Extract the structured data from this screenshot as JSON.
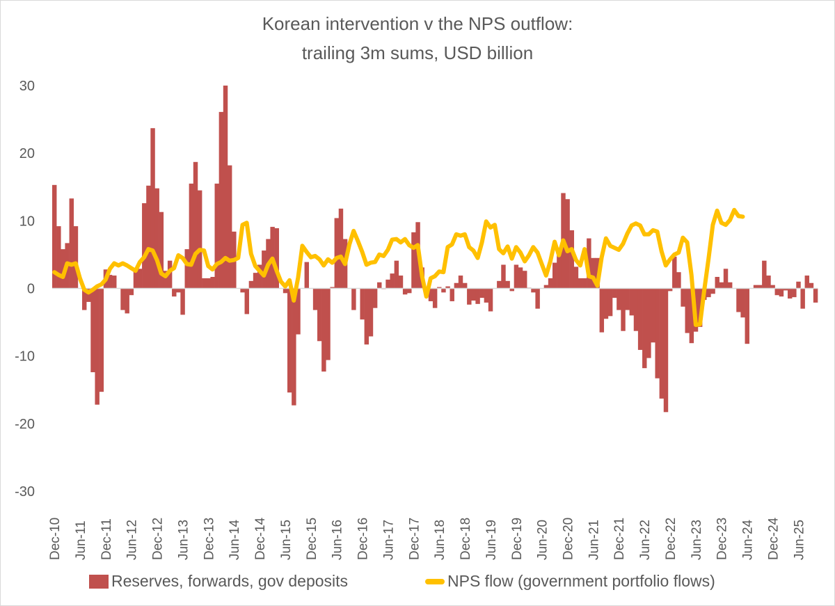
{
  "chart_data": {
    "type": "bar",
    "title": "Korean intervention v the NPS outflow:",
    "subtitle": "trailing 3m sums, USD billion",
    "xlabel": "",
    "ylabel": "",
    "ylim": [
      -30,
      30
    ],
    "yticks": [
      30,
      20,
      10,
      0,
      -10,
      -20,
      -30
    ],
    "grid": false,
    "legend_position": "bottom",
    "x_start": "Dec-10",
    "x_frequency": "monthly",
    "x_tick_labels": [
      "Dec-10",
      "Jun-11",
      "Dec-11",
      "Jun-12",
      "Dec-12",
      "Jun-13",
      "Dec-13",
      "Jun-14",
      "Dec-14",
      "Jun-15",
      "Dec-15",
      "Jun-16",
      "Dec-16",
      "Jun-17",
      "Dec-17",
      "Jun-18",
      "Dec-18",
      "Jun-19",
      "Dec-19",
      "Jun-20",
      "Dec-20",
      "Jun-21",
      "Dec-21",
      "Jun-22",
      "Dec-22",
      "Jun-23",
      "Dec-23",
      "Jun-24",
      "Dec-24",
      "Jun-25"
    ],
    "series": [
      {
        "name": "Reserves, forwards, gov deposits",
        "type": "bar",
        "color": "#c0504d",
        "values": [
          15.3,
          9.2,
          5.8,
          6.7,
          13.3,
          9.2,
          0,
          -3.2,
          -2.0,
          -12.4,
          -17.2,
          -15.3,
          2.8,
          2.0,
          1.9,
          0,
          -3.2,
          -3.7,
          -1.0,
          2.6,
          2.9,
          12.6,
          15.2,
          23.7,
          14.8,
          11.3,
          2.6,
          4.1,
          -1.2,
          -0.6,
          -3.9,
          5.8,
          15.5,
          18.7,
          14.5,
          1.5,
          1.5,
          1.7,
          15.5,
          26.1,
          30.0,
          18.2,
          8.4,
          0,
          -0.6,
          -3.8,
          1.1,
          2.3,
          3.5,
          5.6,
          7.3,
          9.1,
          8.9,
          0,
          -0.7,
          -15.4,
          -17.3,
          -6.8,
          0,
          3.9,
          0,
          -3.2,
          -7.8,
          -12.3,
          -10.6,
          0.2,
          10.4,
          11.8,
          7.3,
          0,
          -3.2,
          0,
          -4.6,
          -8.3,
          -7.1,
          -2.9,
          0.9,
          -0.1,
          1.3,
          2.2,
          4.1,
          1.9,
          -0.9,
          -0.7,
          8.3,
          9.8,
          3.1,
          0,
          -1.9,
          -2.9,
          0.2,
          -0.6,
          0.3,
          -1.9,
          0.8,
          1.9,
          0.8,
          -2.4,
          -1.8,
          -2.3,
          -1.4,
          -2.1,
          -3.4,
          0,
          1.1,
          3.5,
          1.1,
          -0.4,
          3.5,
          3.1,
          2.6,
          0.1,
          -0.6,
          -3.0,
          0,
          0.5,
          1.5,
          3.8,
          6.0,
          14.1,
          13.2,
          8.6,
          3.2,
          1.5,
          1.5,
          7.4,
          4.5,
          4.5,
          -6.5,
          -4.5,
          -4.1,
          -1.4,
          -3.2,
          -6.3,
          -3.2,
          -4.0,
          -6.3,
          -9.1,
          -11.8,
          -10.3,
          -8.0,
          -13.3,
          -16.3,
          -18.3,
          -0.4,
          4.7,
          2.4,
          -2.7,
          -6.6,
          -8.1,
          -6.4,
          -5.7,
          -1.7,
          -1.3,
          -0.8,
          1.7,
          0.9,
          2.9,
          0.9,
          0,
          -3.5,
          -4.3,
          -8.2,
          0,
          0.5,
          0.5,
          4.1,
          1.9,
          0.5,
          -1.0,
          -1.2,
          -0.3,
          -1.5,
          -1.3,
          1.0,
          -3.0,
          1.9,
          0.8,
          -2.1
        ]
      },
      {
        "name": "NPS flow (government portfolio flows)",
        "type": "line",
        "color": "#ffc000",
        "values": [
          2.4,
          2.0,
          1.7,
          3.7,
          3.5,
          3.7,
          1.5,
          -0.2,
          -0.6,
          -0.2,
          0.3,
          0.6,
          1.3,
          2.9,
          3.7,
          3.4,
          3.7,
          3.4,
          3.0,
          2.6,
          3.9,
          4.6,
          5.8,
          5.6,
          4.2,
          2.2,
          1.8,
          2.6,
          3.0,
          4.9,
          4.5,
          3.6,
          3.5,
          5.1,
          5.7,
          5.6,
          3.3,
          2.8,
          3.6,
          3.9,
          4.5,
          4.1,
          4.2,
          4.5,
          9.4,
          9.7,
          5.1,
          3.3,
          2.6,
          1.9,
          3.5,
          4.4,
          2.6,
          1.0,
          0.3,
          1.2,
          -1.8,
          1.6,
          6.3,
          5.4,
          4.6,
          4.8,
          4.3,
          3.4,
          4.3,
          3.8,
          4.5,
          4.7,
          3.6,
          6.5,
          8.5,
          7.0,
          5.4,
          3.5,
          3.8,
          3.9,
          5.0,
          4.8,
          5.7,
          7.2,
          7.3,
          6.8,
          7.3,
          6.4,
          6.0,
          6.4,
          1.8,
          -1.2,
          1.5,
          1.8,
          2.5,
          2.4,
          6.1,
          6.5,
          8.0,
          7.8,
          8.0,
          6.1,
          5.6,
          4.5,
          6.8,
          9.9,
          9.0,
          9.4,
          5.8,
          5.2,
          6.2,
          4.4,
          6.1,
          5.3,
          4.0,
          4.9,
          6.1,
          5.3,
          3.6,
          1.9,
          4.0,
          6.9,
          4.9,
          7.1,
          5.5,
          5.8,
          4.2,
          3.4,
          5.8,
          1.8,
          1.6,
          0.4,
          4.6,
          7.4,
          6.3,
          6.0,
          5.7,
          6.6,
          8.1,
          9.3,
          9.6,
          9.3,
          8.0,
          8.0,
          8.6,
          8.4,
          5.5,
          3.4,
          4.3,
          5.0,
          5.3,
          7.5,
          6.8,
          2.0,
          -5.4,
          -5.3,
          -0.2,
          4.4,
          9.4,
          11.5,
          9.7,
          9.4,
          10.1,
          11.6,
          10.7,
          10.6
        ]
      }
    ]
  },
  "legend": {
    "bar_label": "Reserves, forwards, gov deposits",
    "line_label": "NPS flow (government portfolio flows)"
  }
}
